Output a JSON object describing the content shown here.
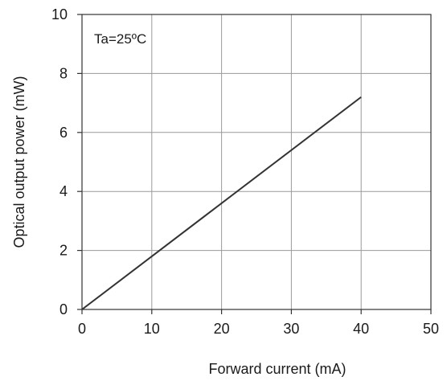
{
  "chart_data": {
    "type": "line",
    "title": "",
    "xlabel": "Forward current  (mA)",
    "ylabel": "Optical output power  (mW)",
    "annotation": "Ta=25ºC",
    "xlim": [
      0,
      50
    ],
    "ylim": [
      0,
      10
    ],
    "xticks": [
      0,
      10,
      20,
      30,
      40,
      50
    ],
    "yticks": [
      0,
      2,
      4,
      6,
      8,
      10
    ],
    "grid": true,
    "series": [
      {
        "x": [
          0,
          40
        ],
        "y": [
          0,
          7.2
        ],
        "color": "#333333"
      }
    ]
  }
}
